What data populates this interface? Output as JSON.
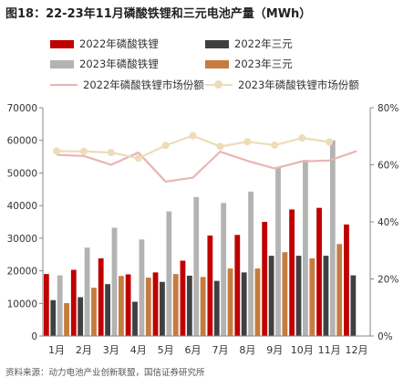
{
  "title": "图18：22-23年11月磷酸铁锂和三元电池产量（MWh）",
  "source": "资料来源：动力电池产业创新联盟，国信证券研究所",
  "chart_data": {
    "type": "bar",
    "categories": [
      "1月",
      "2月",
      "3月",
      "4月",
      "5月",
      "6月",
      "7月",
      "8月",
      "9月",
      "10月",
      "11月",
      "12月"
    ],
    "y_left": {
      "lim": [
        0,
        70000
      ],
      "ticks": [
        "0",
        "10000",
        "20000",
        "30000",
        "40000",
        "50000",
        "60000",
        "70000"
      ]
    },
    "y_right": {
      "lim": [
        0,
        80
      ],
      "ticks": [
        "0%",
        "20%",
        "40%",
        "60%",
        "80%"
      ]
    },
    "grid": false,
    "legend_position": "top",
    "bar_series": [
      {
        "name": "2022年磷酸铁锂",
        "color": "#c00000",
        "values": [
          19000,
          20300,
          23800,
          18900,
          19500,
          23100,
          30800,
          31000,
          35000,
          38800,
          39300,
          34200
        ]
      },
      {
        "name": "2022年三元",
        "color": "#404040",
        "values": [
          11000,
          11900,
          15900,
          10500,
          16600,
          18500,
          16900,
          19500,
          24600,
          24600,
          24600,
          18600
        ]
      },
      {
        "name": "2023年磷酸铁锂",
        "color": "#b3b3b3",
        "values": [
          18600,
          27100,
          33200,
          29600,
          38200,
          42600,
          40800,
          44300,
          51900,
          54000,
          60000,
          null
        ]
      },
      {
        "name": "2023年三元",
        "color": "#c67b3f",
        "values": [
          10100,
          14800,
          18400,
          17900,
          19000,
          18100,
          20700,
          20700,
          25700,
          23800,
          28200,
          null
        ]
      }
    ],
    "line_series": [
      {
        "name": "2022年磷酸铁锂市场份额",
        "color": "#e8b5b7",
        "marker": false,
        "values": [
          63.5,
          63.1,
          60.0,
          64.3,
          54.1,
          55.5,
          64.6,
          61.4,
          58.7,
          61.2,
          61.5,
          64.8
        ]
      },
      {
        "name": "2023年磷酸铁锂市场份额",
        "color": "#eddcb8",
        "marker": true,
        "values": [
          64.8,
          64.7,
          64.3,
          62.3,
          66.8,
          70.2,
          66.4,
          68.1,
          66.9,
          69.4,
          68.0,
          null
        ]
      }
    ]
  }
}
